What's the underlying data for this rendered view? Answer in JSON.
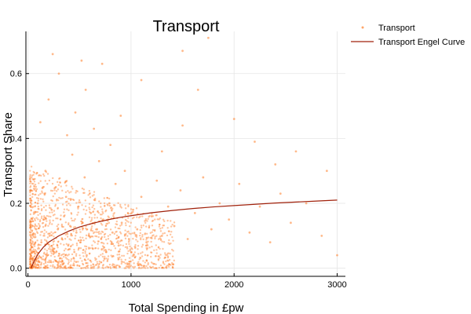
{
  "chart_data": {
    "type": "scatter",
    "title": "Transport",
    "xlabel": "Total Spending in £pw",
    "ylabel": "Transport Share",
    "xlim": [
      -20,
      3080
    ],
    "ylim": [
      -0.025,
      0.73
    ],
    "xticks": [
      0,
      1000,
      2000,
      3000
    ],
    "xtick_labels": [
      "0",
      "1000",
      "2000",
      "3000"
    ],
    "yticks": [
      0.0,
      0.2,
      0.4,
      0.6
    ],
    "ytick_labels": [
      "0.0",
      "0.2",
      "0.4",
      "0.6"
    ],
    "grid": true,
    "legend_position": "outside-top-right",
    "series": [
      {
        "name": "Transport",
        "kind": "scatter",
        "color": "#ff7f2a",
        "points": [
          [
            60,
            0.05
          ],
          [
            80,
            0.12
          ],
          [
            95,
            0.2
          ],
          [
            110,
            0.02
          ],
          [
            130,
            0.08
          ],
          [
            150,
            0.15
          ],
          [
            170,
            0.3
          ],
          [
            190,
            0.04
          ],
          [
            210,
            0.1
          ],
          [
            230,
            0.18
          ],
          [
            250,
            0.06
          ],
          [
            270,
            0.25
          ],
          [
            290,
            0.12
          ],
          [
            310,
            0.03
          ],
          [
            330,
            0.09
          ],
          [
            350,
            0.16
          ],
          [
            370,
            0.22
          ],
          [
            390,
            0.07
          ],
          [
            410,
            0.13
          ],
          [
            430,
            0.35
          ],
          [
            450,
            0.05
          ],
          [
            470,
            0.11
          ],
          [
            490,
            0.19
          ],
          [
            510,
            0.08
          ],
          [
            530,
            0.14
          ],
          [
            550,
            0.28
          ],
          [
            570,
            0.04
          ],
          [
            590,
            0.1
          ],
          [
            610,
            0.17
          ],
          [
            630,
            0.06
          ],
          [
            650,
            0.21
          ],
          [
            670,
            0.12
          ],
          [
            690,
            0.33
          ],
          [
            710,
            0.09
          ],
          [
            730,
            0.15
          ],
          [
            760,
            0.05
          ],
          [
            790,
            0.2
          ],
          [
            820,
            0.11
          ],
          [
            850,
            0.26
          ],
          [
            880,
            0.07
          ],
          [
            910,
            0.14
          ],
          [
            940,
            0.3
          ],
          [
            980,
            0.09
          ],
          [
            1020,
            0.18
          ],
          [
            1060,
            0.12
          ],
          [
            1100,
            0.22
          ],
          [
            1150,
            0.08
          ],
          [
            1200,
            0.16
          ],
          [
            1250,
            0.27
          ],
          [
            1300,
            0.1
          ],
          [
            1360,
            0.19
          ],
          [
            1420,
            0.13
          ],
          [
            1480,
            0.24
          ],
          [
            1550,
            0.09
          ],
          [
            1620,
            0.17
          ],
          [
            1700,
            0.28
          ],
          [
            1780,
            0.12
          ],
          [
            1860,
            0.2
          ],
          [
            1950,
            0.15
          ],
          [
            2050,
            0.26
          ],
          [
            2150,
            0.11
          ],
          [
            2250,
            0.19
          ],
          [
            2350,
            0.08
          ],
          [
            2450,
            0.23
          ],
          [
            2550,
            0.14
          ],
          [
            2700,
            0.2
          ],
          [
            2850,
            0.1
          ],
          [
            3000,
            0.04
          ],
          [
            120,
            0.45
          ],
          [
            200,
            0.52
          ],
          [
            300,
            0.6
          ],
          [
            380,
            0.41
          ],
          [
            460,
            0.48
          ],
          [
            560,
            0.55
          ],
          [
            640,
            0.43
          ],
          [
            720,
            0.63
          ],
          [
            800,
            0.38
          ],
          [
            900,
            0.47
          ],
          [
            1100,
            0.58
          ],
          [
            1300,
            0.36
          ],
          [
            1500,
            0.44
          ],
          [
            1750,
            0.71
          ],
          [
            2000,
            0.46
          ],
          [
            2200,
            0.39
          ],
          [
            2400,
            0.32
          ],
          [
            2600,
            0.36
          ],
          [
            2900,
            0.3
          ],
          [
            240,
            0.66
          ],
          [
            520,
            0.64
          ],
          [
            1500,
            0.67
          ],
          [
            1650,
            0.55
          ]
        ]
      },
      {
        "name": "Transport Engel Curve",
        "kind": "line",
        "color": "#a0200a",
        "points": [
          [
            30,
            0.0
          ],
          [
            60,
            0.022
          ],
          [
            100,
            0.045
          ],
          [
            150,
            0.065
          ],
          [
            200,
            0.08
          ],
          [
            300,
            0.1
          ],
          [
            400,
            0.115
          ],
          [
            500,
            0.127
          ],
          [
            600,
            0.136
          ],
          [
            700,
            0.144
          ],
          [
            800,
            0.151
          ],
          [
            900,
            0.157
          ],
          [
            1000,
            0.162
          ],
          [
            1200,
            0.171
          ],
          [
            1400,
            0.178
          ],
          [
            1600,
            0.184
          ],
          [
            1800,
            0.189
          ],
          [
            2000,
            0.193
          ],
          [
            2200,
            0.197
          ],
          [
            2400,
            0.201
          ],
          [
            2600,
            0.204
          ],
          [
            2800,
            0.207
          ],
          [
            3000,
            0.21
          ]
        ]
      }
    ]
  }
}
